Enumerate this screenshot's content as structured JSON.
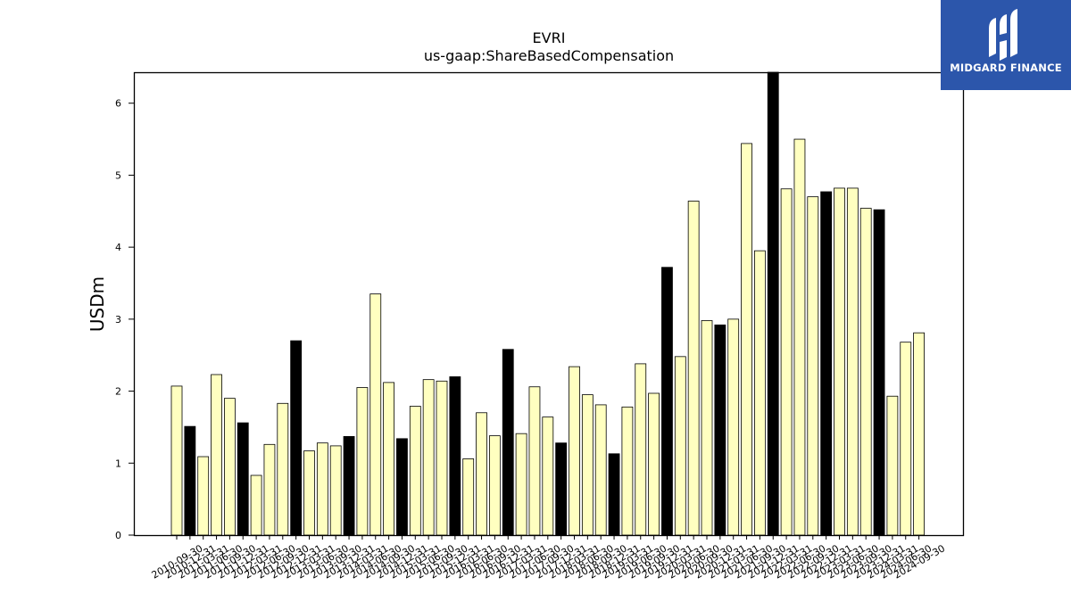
{
  "chart_data": {
    "type": "bar",
    "title": "EVRI",
    "subtitle": "us-gaap:ShareBasedCompensation",
    "xlabel": "",
    "ylabel": "USDm",
    "ylim": [
      0,
      6.43
    ],
    "yticks": [
      0,
      1,
      2,
      3,
      4,
      5,
      6
    ],
    "grid": false,
    "colors": {
      "quarter": "#ffffc0",
      "annual": "#000000",
      "edge": "#000000"
    },
    "categories": [
      "2010-09-30",
      "2010-12-31",
      "2011-03-31",
      "2011-06-30",
      "2011-09-30",
      "2011-12-31",
      "2012-03-31",
      "2012-06-30",
      "2012-09-30",
      "2012-12-31",
      "2013-03-31",
      "2013-06-30",
      "2013-09-30",
      "2013-12-31",
      "2014-03-31",
      "2014-06-30",
      "2014-09-30",
      "2014-12-31",
      "2015-03-31",
      "2015-06-30",
      "2015-09-30",
      "2015-12-31",
      "2016-03-31",
      "2016-06-30",
      "2016-09-30",
      "2016-12-31",
      "2017-03-31",
      "2017-06-30",
      "2017-09-30",
      "2017-12-31",
      "2018-03-31",
      "2018-06-30",
      "2018-09-30",
      "2018-12-31",
      "2019-03-31",
      "2019-06-30",
      "2019-09-30",
      "2019-12-31",
      "2020-03-31",
      "2020-06-30",
      "2020-09-30",
      "2020-12-31",
      "2021-03-31",
      "2021-06-30",
      "2021-09-30",
      "2021-12-31",
      "2022-03-31",
      "2022-06-30",
      "2022-09-30",
      "2022-12-31",
      "2023-03-31",
      "2023-06-30",
      "2023-09-30",
      "2023-12-31",
      "2024-03-31",
      "2024-06-30",
      "2024-09-30"
    ],
    "values": [
      2.07,
      1.51,
      1.09,
      2.23,
      1.9,
      1.56,
      0.83,
      1.26,
      1.83,
      2.7,
      1.17,
      1.28,
      1.24,
      1.37,
      2.05,
      3.35,
      2.12,
      1.34,
      1.79,
      2.16,
      2.14,
      2.2,
      1.06,
      1.7,
      1.38,
      2.58,
      1.41,
      2.06,
      1.64,
      1.28,
      2.34,
      1.95,
      1.81,
      1.13,
      1.78,
      2.38,
      1.97,
      3.72,
      2.48,
      4.64,
      2.98,
      2.92,
      3.0,
      5.44,
      3.95,
      6.43,
      4.81,
      5.5,
      4.7,
      4.77,
      4.82,
      4.82,
      4.54,
      4.52,
      1.93,
      2.68,
      2.81
    ],
    "annual": [
      false,
      true,
      false,
      false,
      false,
      true,
      false,
      false,
      false,
      true,
      false,
      false,
      false,
      true,
      false,
      false,
      false,
      true,
      false,
      false,
      false,
      true,
      false,
      false,
      false,
      true,
      false,
      false,
      false,
      true,
      false,
      false,
      false,
      true,
      false,
      false,
      false,
      true,
      false,
      false,
      false,
      true,
      false,
      false,
      false,
      true,
      false,
      false,
      false,
      true,
      false,
      false,
      false,
      true,
      false,
      false,
      false
    ]
  },
  "logo": {
    "text": "MIDGARD FINANCE",
    "icon": "midgard-logo-icon"
  }
}
